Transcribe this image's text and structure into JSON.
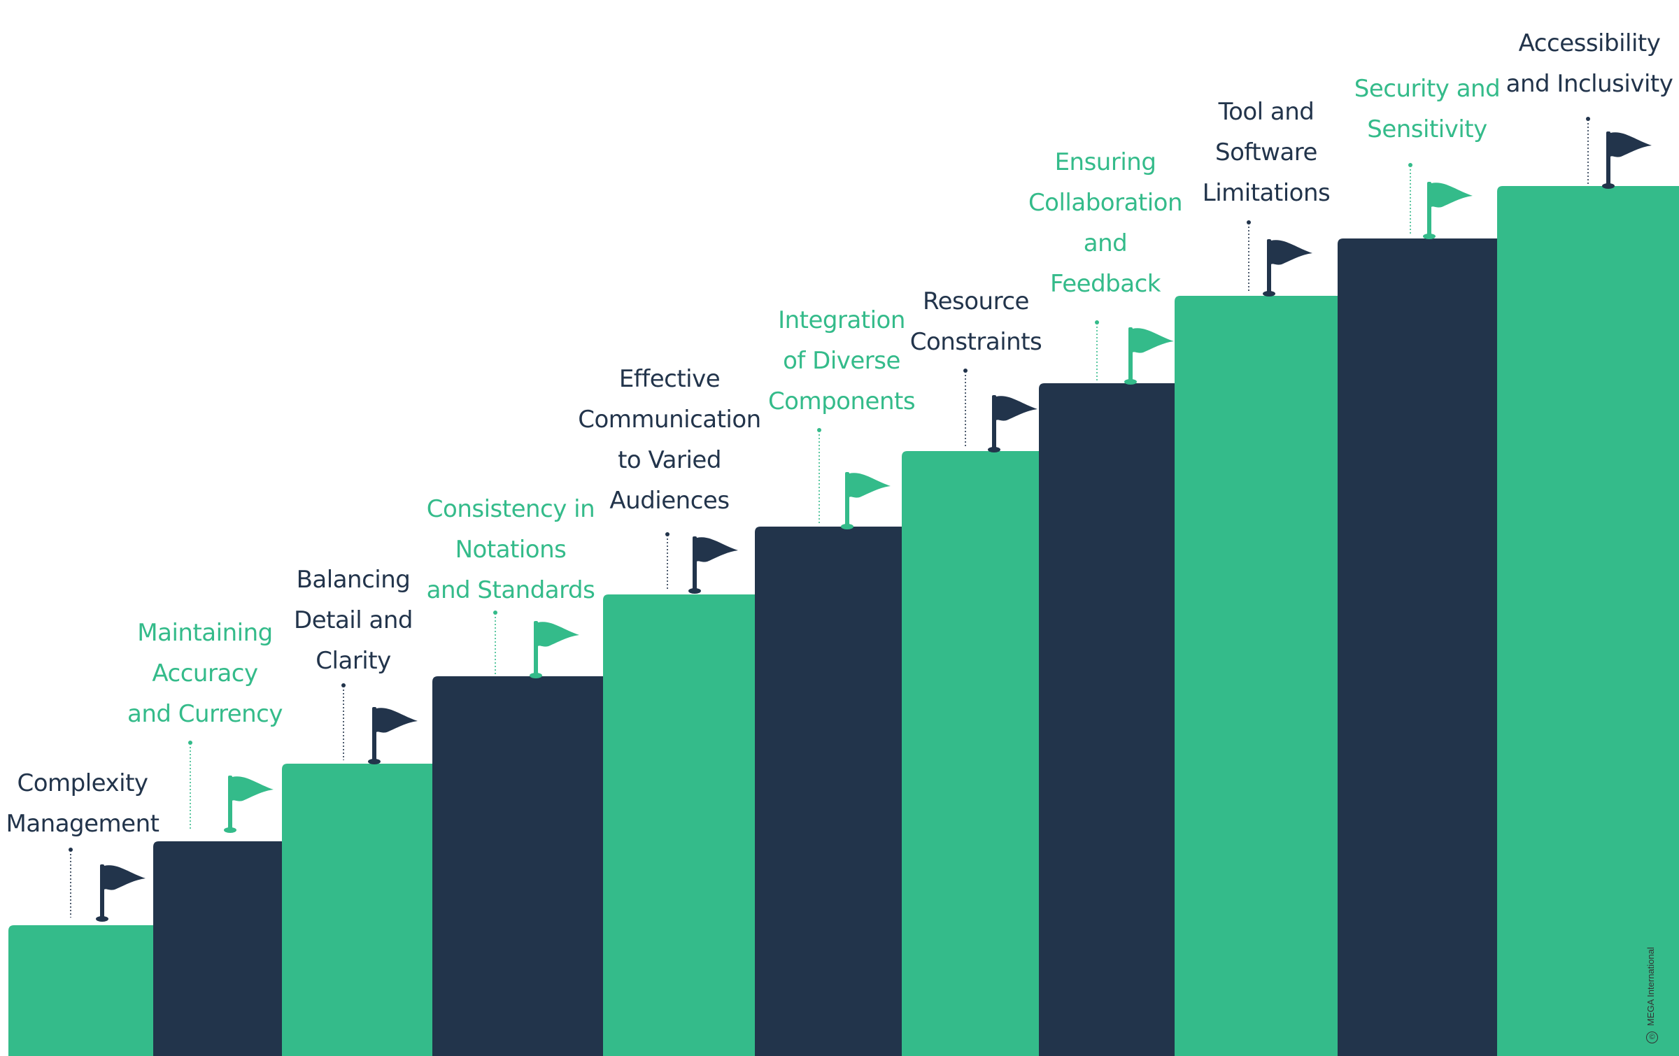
{
  "colors": {
    "green": "#34BB8A",
    "navy": "#22344B",
    "background": "#FFFFFF"
  },
  "steps": [
    {
      "label": "Complexity\nManagement",
      "block_color": "green",
      "flag_color": "navy",
      "label_color": "navy"
    },
    {
      "label": "Maintaining\nAccuracy\nand Currency",
      "block_color": "navy",
      "flag_color": "green",
      "label_color": "green"
    },
    {
      "label": "Balancing\nDetail and\nClarity",
      "block_color": "green",
      "flag_color": "navy",
      "label_color": "navy"
    },
    {
      "label": "Consistency in\nNotations\nand Standards",
      "block_color": "navy",
      "flag_color": "green",
      "label_color": "green"
    },
    {
      "label": "Effective\nCommunication\nto Varied\nAudiences",
      "block_color": "green",
      "flag_color": "navy",
      "label_color": "navy"
    },
    {
      "label": "Integration\nof Diverse\nComponents",
      "block_color": "navy",
      "flag_color": "green",
      "label_color": "green"
    },
    {
      "label": "Resource\nConstraints",
      "block_color": "green",
      "flag_color": "navy",
      "label_color": "navy"
    },
    {
      "label": "Ensuring\nCollaboration\nand\nFeedback",
      "block_color": "navy",
      "flag_color": "green",
      "label_color": "green"
    },
    {
      "label": "Tool and\nSoftware\nLimitations",
      "block_color": "green",
      "flag_color": "navy",
      "label_color": "navy"
    },
    {
      "label": "Security and\nSensitivity",
      "block_color": "navy",
      "flag_color": "green",
      "label_color": "green"
    },
    {
      "label": "Accessibility\nand Inclusivity",
      "block_color": "green",
      "flag_color": "navy",
      "label_color": "navy"
    }
  ],
  "copyright": {
    "symbol": "©",
    "text": "MEGA International"
  }
}
